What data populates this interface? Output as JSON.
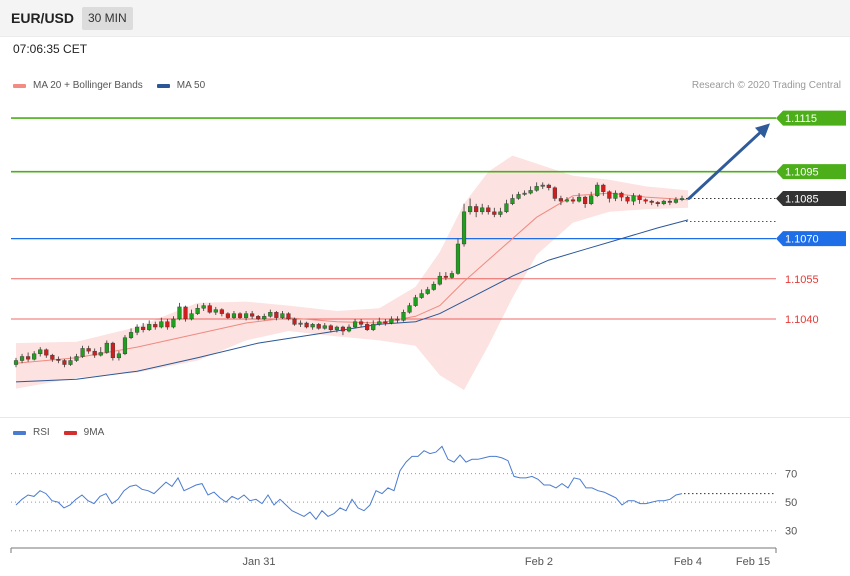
{
  "header": {
    "pair": "EUR/USD",
    "timeframe": "30 MIN"
  },
  "timestamp": "07:06:35 CET",
  "legend": {
    "ma": {
      "label": "MA 20 + Bollinger Bands",
      "color": "#f28b82"
    },
    "ma50": {
      "label": "MA 50",
      "color": "#2b5797"
    }
  },
  "credit": "Research © 2020 Trading Central",
  "rsi_legend": {
    "rsi": {
      "label": "RSI",
      "color": "#4a7bd0"
    },
    "ma9": {
      "label": "9MA",
      "color": "#d32f2f"
    }
  },
  "icons": {
    "projection": "arrow-up-right-icon"
  },
  "chart_data": [
    {
      "type": "candlestick",
      "title": "EUR/USD",
      "y_range": [
        1.1012,
        1.1121
      ],
      "levels": [
        {
          "label": "1.1115",
          "value": 1.1115,
          "kind": "resistance",
          "color": "#4caf1a"
        },
        {
          "label": "1.1095",
          "value": 1.1095,
          "kind": "resistance",
          "color": "#4caf1a"
        },
        {
          "label": "1.1085",
          "value": 1.1085,
          "kind": "last",
          "color": "#333333"
        },
        {
          "label": "1.1070",
          "value": 1.107,
          "kind": "pivot",
          "color": "#1e6ee8"
        },
        {
          "label": "1.1055",
          "value": 1.1055,
          "kind": "support",
          "color": "#e53935"
        },
        {
          "label": "1.1040",
          "value": 1.104,
          "kind": "support",
          "color": "#e53935"
        }
      ],
      "projection": {
        "from": 1.1085,
        "to": 1.1113
      },
      "candles": [
        [
          1.1023,
          1.10245,
          1.10255,
          1.1022
        ],
        [
          1.10245,
          1.1026,
          1.1027,
          1.10235
        ],
        [
          1.1026,
          1.1025,
          1.10275,
          1.1024
        ],
        [
          1.1025,
          1.1027,
          1.1028,
          1.10245
        ],
        [
          1.1027,
          1.10285,
          1.10295,
          1.1026
        ],
        [
          1.10285,
          1.10265,
          1.1029,
          1.10255
        ],
        [
          1.10265,
          1.1025,
          1.1027,
          1.1024
        ],
        [
          1.1025,
          1.10245,
          1.1026,
          1.10235
        ],
        [
          1.10245,
          1.1023,
          1.1025,
          1.1022
        ],
        [
          1.1023,
          1.10245,
          1.1026,
          1.10225
        ],
        [
          1.10245,
          1.1026,
          1.1027,
          1.1024
        ],
        [
          1.1026,
          1.1029,
          1.103,
          1.10255
        ],
        [
          1.1029,
          1.1028,
          1.103,
          1.1027
        ],
        [
          1.1028,
          1.10265,
          1.1029,
          1.10255
        ],
        [
          1.10265,
          1.10275,
          1.10295,
          1.1026
        ],
        [
          1.10275,
          1.1031,
          1.1032,
          1.1027
        ],
        [
          1.1031,
          1.10255,
          1.10315,
          1.10245
        ],
        [
          1.10255,
          1.1027,
          1.1028,
          1.10245
        ],
        [
          1.1027,
          1.1033,
          1.1034,
          1.10265
        ],
        [
          1.1033,
          1.1035,
          1.10365,
          1.10325
        ],
        [
          1.1035,
          1.1037,
          1.1038,
          1.1034
        ],
        [
          1.1037,
          1.1036,
          1.10385,
          1.1035
        ],
        [
          1.1036,
          1.1038,
          1.10395,
          1.10355
        ],
        [
          1.1038,
          1.1037,
          1.1039,
          1.1036
        ],
        [
          1.1037,
          1.1039,
          1.10405,
          1.10365
        ],
        [
          1.1039,
          1.1037,
          1.104,
          1.1036
        ],
        [
          1.1037,
          1.104,
          1.1041,
          1.10365
        ],
        [
          1.104,
          1.10445,
          1.1046,
          1.10395
        ],
        [
          1.10445,
          1.104,
          1.1045,
          1.1039
        ],
        [
          1.104,
          1.1042,
          1.10435,
          1.10395
        ],
        [
          1.1042,
          1.1044,
          1.10455,
          1.10415
        ],
        [
          1.1044,
          1.1045,
          1.1046,
          1.1043
        ],
        [
          1.1045,
          1.10425,
          1.1046,
          1.1042
        ],
        [
          1.10425,
          1.10435,
          1.10445,
          1.10415
        ],
        [
          1.10435,
          1.1042,
          1.1044,
          1.1041
        ],
        [
          1.1042,
          1.10405,
          1.10425,
          1.104
        ],
        [
          1.10405,
          1.1042,
          1.1043,
          1.104
        ],
        [
          1.1042,
          1.10405,
          1.10425,
          1.104
        ],
        [
          1.10405,
          1.1042,
          1.1043,
          1.10395
        ],
        [
          1.1042,
          1.1041,
          1.1043,
          1.104
        ],
        [
          1.1041,
          1.104,
          1.10415,
          1.10395
        ],
        [
          1.104,
          1.1041,
          1.1042,
          1.10395
        ],
        [
          1.1041,
          1.10425,
          1.10435,
          1.10405
        ],
        [
          1.10425,
          1.10405,
          1.1043,
          1.10395
        ],
        [
          1.10405,
          1.1042,
          1.1043,
          1.104
        ],
        [
          1.1042,
          1.104,
          1.10425,
          1.10395
        ],
        [
          1.104,
          1.1038,
          1.10405,
          1.10375
        ],
        [
          1.1038,
          1.10385,
          1.10395,
          1.1037
        ],
        [
          1.10385,
          1.1037,
          1.1039,
          1.10365
        ],
        [
          1.1037,
          1.1038,
          1.10385,
          1.1036
        ],
        [
          1.1038,
          1.10365,
          1.10385,
          1.1036
        ],
        [
          1.10365,
          1.10375,
          1.10385,
          1.1036
        ],
        [
          1.10375,
          1.1036,
          1.1038,
          1.1035
        ],
        [
          1.1036,
          1.1037,
          1.10375,
          1.1035
        ],
        [
          1.1037,
          1.10355,
          1.10375,
          1.1034
        ],
        [
          1.10355,
          1.1037,
          1.1038,
          1.1035
        ],
        [
          1.1037,
          1.1039,
          1.104,
          1.10365
        ],
        [
          1.1039,
          1.1038,
          1.104,
          1.1037
        ],
        [
          1.1038,
          1.1036,
          1.1039,
          1.10355
        ],
        [
          1.1036,
          1.1038,
          1.10395,
          1.10355
        ],
        [
          1.1038,
          1.1039,
          1.10405,
          1.10375
        ],
        [
          1.1039,
          1.10385,
          1.104,
          1.10375
        ],
        [
          1.10385,
          1.104,
          1.1041,
          1.1038
        ],
        [
          1.104,
          1.10395,
          1.1041,
          1.10385
        ],
        [
          1.10395,
          1.10425,
          1.10435,
          1.1039
        ],
        [
          1.10425,
          1.1045,
          1.1046,
          1.1042
        ],
        [
          1.1045,
          1.1048,
          1.1049,
          1.10445
        ],
        [
          1.1048,
          1.10495,
          1.1051,
          1.10475
        ],
        [
          1.10495,
          1.1051,
          1.1052,
          1.1049
        ],
        [
          1.1051,
          1.1053,
          1.1054,
          1.10505
        ],
        [
          1.1053,
          1.1056,
          1.10575,
          1.10525
        ],
        [
          1.1056,
          1.10555,
          1.10575,
          1.10545
        ],
        [
          1.10555,
          1.1057,
          1.1058,
          1.1055
        ],
        [
          1.1057,
          1.1068,
          1.107,
          1.10565
        ],
        [
          1.1068,
          1.108,
          1.1083,
          1.1067
        ],
        [
          1.108,
          1.1082,
          1.1085,
          1.1079
        ],
        [
          1.1082,
          1.108,
          1.1083,
          1.1078
        ],
        [
          1.108,
          1.10815,
          1.1083,
          1.1079
        ],
        [
          1.10815,
          1.108,
          1.10825,
          1.1079
        ],
        [
          1.108,
          1.1079,
          1.10815,
          1.1078
        ],
        [
          1.1079,
          1.108,
          1.10815,
          1.1078
        ],
        [
          1.108,
          1.1083,
          1.10845,
          1.10795
        ],
        [
          1.1083,
          1.1085,
          1.10865,
          1.10825
        ],
        [
          1.1085,
          1.10865,
          1.10875,
          1.10845
        ],
        [
          1.10865,
          1.1087,
          1.1088,
          1.1086
        ],
        [
          1.1087,
          1.1088,
          1.10895,
          1.10865
        ],
        [
          1.1088,
          1.10895,
          1.1091,
          1.10875
        ],
        [
          1.10895,
          1.109,
          1.1091,
          1.10885
        ],
        [
          1.109,
          1.1089,
          1.10905,
          1.1088
        ],
        [
          1.1089,
          1.1085,
          1.10895,
          1.1084
        ],
        [
          1.1085,
          1.1084,
          1.1086,
          1.10825
        ],
        [
          1.1084,
          1.10845,
          1.10855,
          1.10835
        ],
        [
          1.10845,
          1.1084,
          1.10855,
          1.1083
        ],
        [
          1.1084,
          1.10855,
          1.1087,
          1.10835
        ],
        [
          1.10855,
          1.1083,
          1.1086,
          1.10815
        ],
        [
          1.1083,
          1.1086,
          1.10875,
          1.10825
        ],
        [
          1.1086,
          1.109,
          1.1091,
          1.10855
        ],
        [
          1.109,
          1.10875,
          1.10905,
          1.1086
        ],
        [
          1.10875,
          1.1085,
          1.1088,
          1.10835
        ],
        [
          1.1085,
          1.1087,
          1.1088,
          1.1084
        ],
        [
          1.1087,
          1.10855,
          1.10875,
          1.1084
        ],
        [
          1.10855,
          1.1084,
          1.1086,
          1.1083
        ],
        [
          1.1084,
          1.1086,
          1.1087,
          1.10825
        ],
        [
          1.1086,
          1.10845,
          1.10865,
          1.1083
        ],
        [
          1.10845,
          1.1084,
          1.1085,
          1.1083
        ],
        [
          1.1084,
          1.10835,
          1.10845,
          1.10825
        ],
        [
          1.10835,
          1.1083,
          1.1084,
          1.1082
        ],
        [
          1.1083,
          1.1084,
          1.10845,
          1.10825
        ],
        [
          1.1084,
          1.10835,
          1.1085,
          1.10825
        ],
        [
          1.10835,
          1.10845,
          1.10855,
          1.1083
        ],
        [
          1.10845,
          1.1085,
          1.1086,
          1.1084
        ]
      ],
      "ma20": [
        [
          0,
          1.10235
        ],
        [
          10,
          1.10255
        ],
        [
          20,
          1.10295
        ],
        [
          30,
          1.10345
        ],
        [
          38,
          1.10385
        ],
        [
          45,
          1.10405
        ],
        [
          53,
          1.1039
        ],
        [
          60,
          1.10385
        ],
        [
          66,
          1.1041
        ],
        [
          70,
          1.1045
        ],
        [
          74,
          1.1054
        ],
        [
          80,
          1.1066
        ],
        [
          86,
          1.1078
        ],
        [
          92,
          1.1086
        ],
        [
          98,
          1.1087
        ],
        [
          104,
          1.10855
        ],
        [
          111,
          1.10845
        ]
      ],
      "bb_upper": [
        [
          0,
          1.1031
        ],
        [
          10,
          1.10315
        ],
        [
          20,
          1.1037
        ],
        [
          30,
          1.1046
        ],
        [
          38,
          1.10465
        ],
        [
          45,
          1.1045
        ],
        [
          53,
          1.1043
        ],
        [
          60,
          1.1044
        ],
        [
          66,
          1.1052
        ],
        [
          70,
          1.1065
        ],
        [
          74,
          1.1083
        ],
        [
          78,
          1.1095
        ],
        [
          82,
          1.1101
        ],
        [
          86,
          1.1098
        ],
        [
          92,
          1.10935
        ],
        [
          98,
          1.1092
        ],
        [
          104,
          1.10895
        ],
        [
          111,
          1.1088
        ]
      ],
      "bb_lower": [
        [
          0,
          1.1014
        ],
        [
          10,
          1.1018
        ],
        [
          20,
          1.102
        ],
        [
          30,
          1.10245
        ],
        [
          38,
          1.1032
        ],
        [
          45,
          1.10355
        ],
        [
          53,
          1.10335
        ],
        [
          60,
          1.1032
        ],
        [
          66,
          1.103
        ],
        [
          70,
          1.1019
        ],
        [
          74,
          1.10135
        ],
        [
          78,
          1.103
        ],
        [
          82,
          1.1048
        ],
        [
          86,
          1.1064
        ],
        [
          92,
          1.1076
        ],
        [
          98,
          1.108
        ],
        [
          104,
          1.1081
        ],
        [
          111,
          1.10815
        ]
      ],
      "ma50": [
        [
          0,
          1.10165
        ],
        [
          10,
          1.10175
        ],
        [
          20,
          1.10205
        ],
        [
          30,
          1.10255
        ],
        [
          40,
          1.1031
        ],
        [
          50,
          1.10345
        ],
        [
          60,
          1.1038
        ],
        [
          66,
          1.1039
        ],
        [
          70,
          1.1042
        ],
        [
          76,
          1.1049
        ],
        [
          82,
          1.1056
        ],
        [
          88,
          1.1062
        ],
        [
          94,
          1.1066
        ],
        [
          100,
          1.107
        ],
        [
          106,
          1.1074
        ],
        [
          111,
          1.1077
        ]
      ]
    },
    {
      "type": "line",
      "title": "RSI",
      "y_range": [
        20,
        90
      ],
      "yticks": [
        70,
        50,
        30
      ],
      "x_labels": [
        "Jan 31",
        "Feb 2",
        "Feb 4",
        "Feb 15"
      ],
      "series": [
        {
          "name": "RSI",
          "values": [
            48,
            52,
            55,
            54,
            58,
            56,
            51,
            50,
            46,
            48,
            52,
            55,
            51,
            49,
            54,
            56,
            49,
            52,
            58,
            61,
            62,
            59,
            58,
            56,
            60,
            64,
            61,
            67,
            58,
            60,
            62,
            63,
            55,
            57,
            53,
            50,
            54,
            52,
            55,
            51,
            52,
            49,
            55,
            48,
            52,
            48,
            44,
            42,
            40,
            43,
            38,
            44,
            40,
            42,
            46,
            44,
            52,
            46,
            44,
            48,
            58,
            56,
            60,
            58,
            72,
            78,
            82,
            82,
            86,
            84,
            85,
            89,
            80,
            78,
            83,
            78,
            80,
            80,
            81,
            82,
            82,
            81,
            79,
            68,
            67,
            67,
            68,
            66,
            62,
            62,
            60,
            63,
            60,
            67,
            66,
            60,
            60,
            58,
            57,
            55,
            53,
            48,
            51,
            51,
            49,
            49,
            50,
            51,
            51,
            52,
            55,
            56
          ]
        }
      ]
    }
  ]
}
